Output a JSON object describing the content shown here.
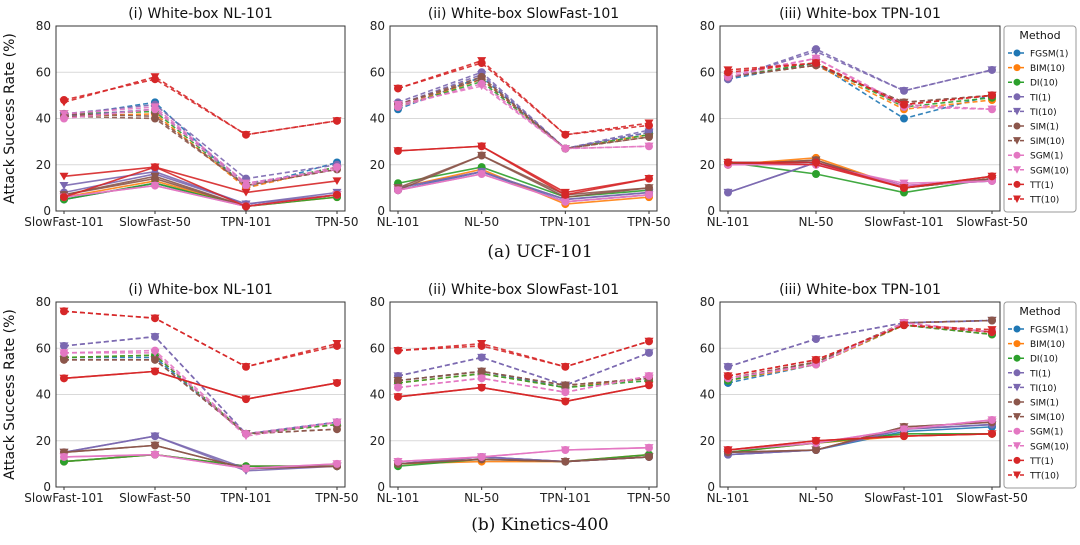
{
  "y_axis_label": "Attack Success Rate (%)",
  "legend_title": "Method",
  "methods": [
    {
      "name": "FGSM(1)",
      "color": "#1f77b4",
      "marker": "circle",
      "dash": true
    },
    {
      "name": "BIM(10)",
      "color": "#ff7f0e",
      "marker": "circle",
      "dash": true
    },
    {
      "name": "DI(10)",
      "color": "#2ca02c",
      "marker": "circle",
      "dash": true
    },
    {
      "name": "TI(1)",
      "color": "#7b68b0",
      "marker": "circle",
      "dash": true
    },
    {
      "name": "TI(10)",
      "color": "#7b68b0",
      "marker": "tri",
      "dash": true
    },
    {
      "name": "SIM(1)",
      "color": "#8c564b",
      "marker": "circle",
      "dash": true
    },
    {
      "name": "SIM(10)",
      "color": "#8c564b",
      "marker": "tri",
      "dash": true
    },
    {
      "name": "SGM(1)",
      "color": "#e377c2",
      "marker": "circle",
      "dash": true
    },
    {
      "name": "SGM(10)",
      "color": "#e377c2",
      "marker": "tri",
      "dash": true
    },
    {
      "name": "TT(1)",
      "color": "#d62728",
      "marker": "circle",
      "dash": true
    },
    {
      "name": "TT(10)",
      "color": "#d62728",
      "marker": "tri",
      "dash": true
    }
  ],
  "captions": {
    "a": "(a) UCF-101",
    "b": "(b) Kinetics-400"
  },
  "chart_data": [
    {
      "type": "line",
      "dataset": "UCF-101",
      "title": "(i) White-box NL-101",
      "ylabel": "Attack Success Rate (%)",
      "ylim": [
        0,
        80
      ],
      "yticks": [
        0,
        20,
        40,
        60,
        80
      ],
      "categories": [
        "SlowFast-101",
        "SlowFast-50",
        "TPN-101",
        "TPN-50"
      ],
      "series": [
        {
          "name": "FGSM(1)",
          "dashed": [
            41,
            47,
            10,
            21
          ],
          "solid": [
            5,
            12,
            2,
            7
          ]
        },
        {
          "name": "BIM(10)",
          "dashed": [
            41,
            42,
            10,
            19
          ],
          "solid": [
            6,
            13,
            2,
            6
          ]
        },
        {
          "name": "DI(10)",
          "dashed": [
            42,
            43,
            11,
            19
          ],
          "solid": [
            5,
            12,
            2,
            6
          ]
        },
        {
          "name": "TI(1)",
          "dashed": [
            42,
            46,
            14,
            20
          ],
          "solid": [
            8,
            16,
            3,
            7
          ]
        },
        {
          "name": "TI(10)",
          "dashed": [
            41,
            44,
            12,
            18
          ],
          "solid": [
            11,
            17,
            3,
            8
          ]
        },
        {
          "name": "SIM(1)",
          "dashed": [
            41,
            40,
            11,
            18
          ],
          "solid": [
            7,
            14,
            2,
            7
          ]
        },
        {
          "name": "SIM(10)",
          "dashed": [
            42,
            41,
            11,
            18
          ],
          "solid": [
            7,
            15,
            2,
            7
          ]
        },
        {
          "name": "SGM(1)",
          "dashed": [
            40,
            44,
            11,
            19
          ],
          "solid": [
            6,
            11,
            2,
            7
          ]
        },
        {
          "name": "SGM(10)",
          "dashed": [
            42,
            45,
            12,
            18
          ],
          "solid": [
            6,
            11,
            2,
            7
          ]
        },
        {
          "name": "TT(1)",
          "dashed": [
            48,
            57,
            33,
            39
          ],
          "solid": [
            6,
            19,
            2,
            7
          ]
        },
        {
          "name": "TT(10)",
          "dashed": [
            47,
            58,
            33,
            39
          ],
          "solid": [
            15,
            19,
            8,
            13
          ]
        }
      ]
    },
    {
      "type": "line",
      "dataset": "UCF-101",
      "title": "(ii) White-box SlowFast-101",
      "ylabel": "",
      "ylim": [
        0,
        80
      ],
      "yticks": [
        0,
        20,
        40,
        60,
        80
      ],
      "categories": [
        "NL-101",
        "NL-50",
        "TPN-101",
        "TPN-50"
      ],
      "series": [
        {
          "name": "FGSM(1)",
          "dashed": [
            44,
            58,
            27,
            34
          ],
          "solid": [
            9,
            17,
            4,
            7
          ]
        },
        {
          "name": "BIM(10)",
          "dashed": [
            45,
            57,
            27,
            33
          ],
          "solid": [
            10,
            18,
            3,
            6
          ]
        },
        {
          "name": "DI(10)",
          "dashed": [
            45,
            56,
            27,
            33
          ],
          "solid": [
            12,
            19,
            6,
            9
          ]
        },
        {
          "name": "TI(1)",
          "dashed": [
            47,
            60,
            27,
            35
          ],
          "solid": [
            10,
            17,
            5,
            8
          ]
        },
        {
          "name": "TI(10)",
          "dashed": [
            46,
            59,
            27,
            34
          ],
          "solid": [
            10,
            17,
            5,
            8
          ]
        },
        {
          "name": "SIM(1)",
          "dashed": [
            46,
            58,
            27,
            32
          ],
          "solid": [
            9,
            24,
            6,
            10
          ]
        },
        {
          "name": "SIM(10)",
          "dashed": [
            46,
            57,
            27,
            32
          ],
          "solid": [
            10,
            24,
            7,
            10
          ]
        },
        {
          "name": "SGM(1)",
          "dashed": [
            45,
            55,
            27,
            28
          ],
          "solid": [
            9,
            16,
            4,
            7
          ]
        },
        {
          "name": "SGM(10)",
          "dashed": [
            46,
            54,
            27,
            28
          ],
          "solid": [
            9,
            16,
            4,
            7
          ]
        },
        {
          "name": "TT(1)",
          "dashed": [
            53,
            64,
            33,
            37
          ],
          "solid": [
            26,
            28,
            7,
            14
          ]
        },
        {
          "name": "TT(10)",
          "dashed": [
            53,
            65,
            33,
            38
          ],
          "solid": [
            26,
            28,
            8,
            14
          ]
        }
      ]
    },
    {
      "type": "line",
      "dataset": "UCF-101",
      "title": "(iii) White-box TPN-101",
      "ylabel": "",
      "ylim": [
        0,
        80
      ],
      "yticks": [
        0,
        20,
        40,
        60,
        80
      ],
      "categories": [
        "NL-101",
        "NL-50",
        "SlowFast-101",
        "SlowFast-50"
      ],
      "series": [
        {
          "name": "FGSM(1)",
          "dashed": [
            57,
            64,
            40,
            50
          ],
          "solid": [
            21,
            21,
            10,
            14
          ]
        },
        {
          "name": "BIM(10)",
          "dashed": [
            58,
            63,
            44,
            48
          ],
          "solid": [
            20,
            23,
            10,
            14
          ]
        },
        {
          "name": "DI(10)",
          "dashed": [
            58,
            64,
            45,
            49
          ],
          "solid": [
            21,
            16,
            8,
            14
          ]
        },
        {
          "name": "TI(1)",
          "dashed": [
            57,
            70,
            52,
            61
          ],
          "solid": [
            8,
            21,
            11,
            13
          ]
        },
        {
          "name": "TI(10)",
          "dashed": [
            57,
            69,
            52,
            61
          ],
          "solid": [
            8,
            21,
            11,
            13
          ]
        },
        {
          "name": "SIM(1)",
          "dashed": [
            58,
            63,
            47,
            50
          ],
          "solid": [
            20,
            22,
            10,
            14
          ]
        },
        {
          "name": "SIM(10)",
          "dashed": [
            58,
            63,
            47,
            50
          ],
          "solid": [
            20,
            22,
            10,
            14
          ]
        },
        {
          "name": "SGM(1)",
          "dashed": [
            58,
            66,
            45,
            44
          ],
          "solid": [
            20,
            20,
            11,
            13
          ]
        },
        {
          "name": "SGM(10)",
          "dashed": [
            59,
            66,
            46,
            44
          ],
          "solid": [
            20,
            20,
            12,
            13
          ]
        },
        {
          "name": "TT(1)",
          "dashed": [
            60,
            64,
            46,
            50
          ],
          "solid": [
            21,
            21,
            10,
            15
          ]
        },
        {
          "name": "TT(10)",
          "dashed": [
            61,
            64,
            46,
            50
          ],
          "solid": [
            21,
            20,
            10,
            15
          ]
        }
      ]
    },
    {
      "type": "line",
      "dataset": "Kinetics-400",
      "title": "(i) White-box NL-101",
      "ylabel": "Attack Success Rate (%)",
      "ylim": [
        0,
        80
      ],
      "yticks": [
        0,
        20,
        40,
        60,
        80
      ],
      "categories": [
        "SlowFast-101",
        "SlowFast-50",
        "TPN-101",
        "TPN-50"
      ],
      "series": [
        {
          "name": "FGSM(1)",
          "dashed": [
            56,
            56,
            23,
            28
          ],
          "solid": [
            11,
            14,
            9,
            9
          ]
        },
        {
          "name": "BIM(10)",
          "dashed": [
            56,
            57,
            23,
            27
          ],
          "solid": [
            11,
            14,
            9,
            9
          ]
        },
        {
          "name": "DI(10)",
          "dashed": [
            56,
            57,
            23,
            27
          ],
          "solid": [
            11,
            14,
            9,
            9
          ]
        },
        {
          "name": "TI(1)",
          "dashed": [
            61,
            65,
            23,
            28
          ],
          "solid": [
            15,
            22,
            8,
            9
          ]
        },
        {
          "name": "TI(10)",
          "dashed": [
            61,
            65,
            23,
            28
          ],
          "solid": [
            15,
            22,
            7,
            9
          ]
        },
        {
          "name": "SIM(1)",
          "dashed": [
            55,
            55,
            23,
            25
          ],
          "solid": [
            15,
            18,
            8,
            9
          ]
        },
        {
          "name": "SIM(10)",
          "dashed": [
            55,
            55,
            23,
            25
          ],
          "solid": [
            15,
            18,
            8,
            9
          ]
        },
        {
          "name": "SGM(1)",
          "dashed": [
            58,
            59,
            23,
            28
          ],
          "solid": [
            13,
            14,
            8,
            10
          ]
        },
        {
          "name": "SGM(10)",
          "dashed": [
            58,
            58,
            22,
            28
          ],
          "solid": [
            13,
            14,
            8,
            10
          ]
        },
        {
          "name": "TT(1)",
          "dashed": [
            76,
            73,
            52,
            61
          ],
          "solid": [
            47,
            50,
            38,
            45
          ]
        },
        {
          "name": "TT(10)",
          "dashed": [
            76,
            73,
            52,
            62
          ],
          "solid": [
            47,
            50,
            38,
            45
          ]
        }
      ]
    },
    {
      "type": "line",
      "dataset": "Kinetics-400",
      "title": "(ii) White-box SlowFast-101",
      "ylabel": "",
      "ylim": [
        0,
        80
      ],
      "yticks": [
        0,
        20,
        40,
        60,
        80
      ],
      "categories": [
        "NL-101",
        "NL-50",
        "TPN-101",
        "TPN-50"
      ],
      "series": [
        {
          "name": "FGSM(1)",
          "dashed": [
            46,
            50,
            43,
            47
          ],
          "solid": [
            10,
            13,
            11,
            13
          ]
        },
        {
          "name": "BIM(10)",
          "dashed": [
            45,
            49,
            43,
            47
          ],
          "solid": [
            10,
            11,
            11,
            14
          ]
        },
        {
          "name": "DI(10)",
          "dashed": [
            45,
            49,
            43,
            46
          ],
          "solid": [
            9,
            12,
            11,
            14
          ]
        },
        {
          "name": "TI(1)",
          "dashed": [
            48,
            56,
            44,
            58
          ],
          "solid": [
            10,
            13,
            11,
            13
          ]
        },
        {
          "name": "TI(10)",
          "dashed": [
            48,
            56,
            44,
            58
          ],
          "solid": [
            10,
            13,
            11,
            13
          ]
        },
        {
          "name": "SIM(1)",
          "dashed": [
            46,
            50,
            44,
            47
          ],
          "solid": [
            10,
            12,
            11,
            13
          ]
        },
        {
          "name": "SIM(10)",
          "dashed": [
            46,
            50,
            44,
            47
          ],
          "solid": [
            10,
            12,
            11,
            13
          ]
        },
        {
          "name": "SGM(1)",
          "dashed": [
            43,
            47,
            41,
            48
          ],
          "solid": [
            11,
            13,
            16,
            17
          ]
        },
        {
          "name": "SGM(10)",
          "dashed": [
            43,
            47,
            41,
            48
          ],
          "solid": [
            11,
            13,
            16,
            17
          ]
        },
        {
          "name": "TT(1)",
          "dashed": [
            59,
            61,
            52,
            63
          ],
          "solid": [
            39,
            43,
            37,
            44
          ]
        },
        {
          "name": "TT(10)",
          "dashed": [
            59,
            62,
            52,
            63
          ],
          "solid": [
            39,
            43,
            37,
            44
          ]
        }
      ]
    },
    {
      "type": "line",
      "dataset": "Kinetics-400",
      "title": "(iii) White-box TPN-101",
      "ylabel": "",
      "ylim": [
        0,
        80
      ],
      "yticks": [
        0,
        20,
        40,
        60,
        80
      ],
      "categories": [
        "NL-101",
        "NL-50",
        "SlowFast-101",
        "SlowFast-50"
      ],
      "series": [
        {
          "name": "FGSM(1)",
          "dashed": [
            45,
            53,
            70,
            66
          ],
          "solid": [
            14,
            16,
            24,
            26
          ]
        },
        {
          "name": "BIM(10)",
          "dashed": [
            46,
            53,
            70,
            66
          ],
          "solid": [
            15,
            19,
            22,
            23
          ]
        },
        {
          "name": "DI(10)",
          "dashed": [
            46,
            54,
            70,
            66
          ],
          "solid": [
            15,
            19,
            23,
            23
          ]
        },
        {
          "name": "TI(1)",
          "dashed": [
            52,
            64,
            71,
            72
          ],
          "solid": [
            14,
            16,
            25,
            27
          ]
        },
        {
          "name": "TI(10)",
          "dashed": [
            52,
            64,
            71,
            72
          ],
          "solid": [
            14,
            16,
            25,
            27
          ]
        },
        {
          "name": "SIM(1)",
          "dashed": [
            47,
            54,
            71,
            72
          ],
          "solid": [
            15,
            16,
            26,
            28
          ]
        },
        {
          "name": "SIM(10)",
          "dashed": [
            47,
            54,
            71,
            72
          ],
          "solid": [
            15,
            16,
            26,
            28
          ]
        },
        {
          "name": "SGM(1)",
          "dashed": [
            47,
            53,
            71,
            67
          ],
          "solid": [
            16,
            19,
            25,
            29
          ]
        },
        {
          "name": "SGM(10)",
          "dashed": [
            47,
            53,
            71,
            67
          ],
          "solid": [
            16,
            19,
            25,
            29
          ]
        },
        {
          "name": "TT(1)",
          "dashed": [
            48,
            55,
            70,
            67
          ],
          "solid": [
            16,
            20,
            22,
            23
          ]
        },
        {
          "name": "TT(10)",
          "dashed": [
            48,
            55,
            70,
            68
          ],
          "solid": [
            16,
            20,
            22,
            23
          ]
        }
      ]
    }
  ]
}
